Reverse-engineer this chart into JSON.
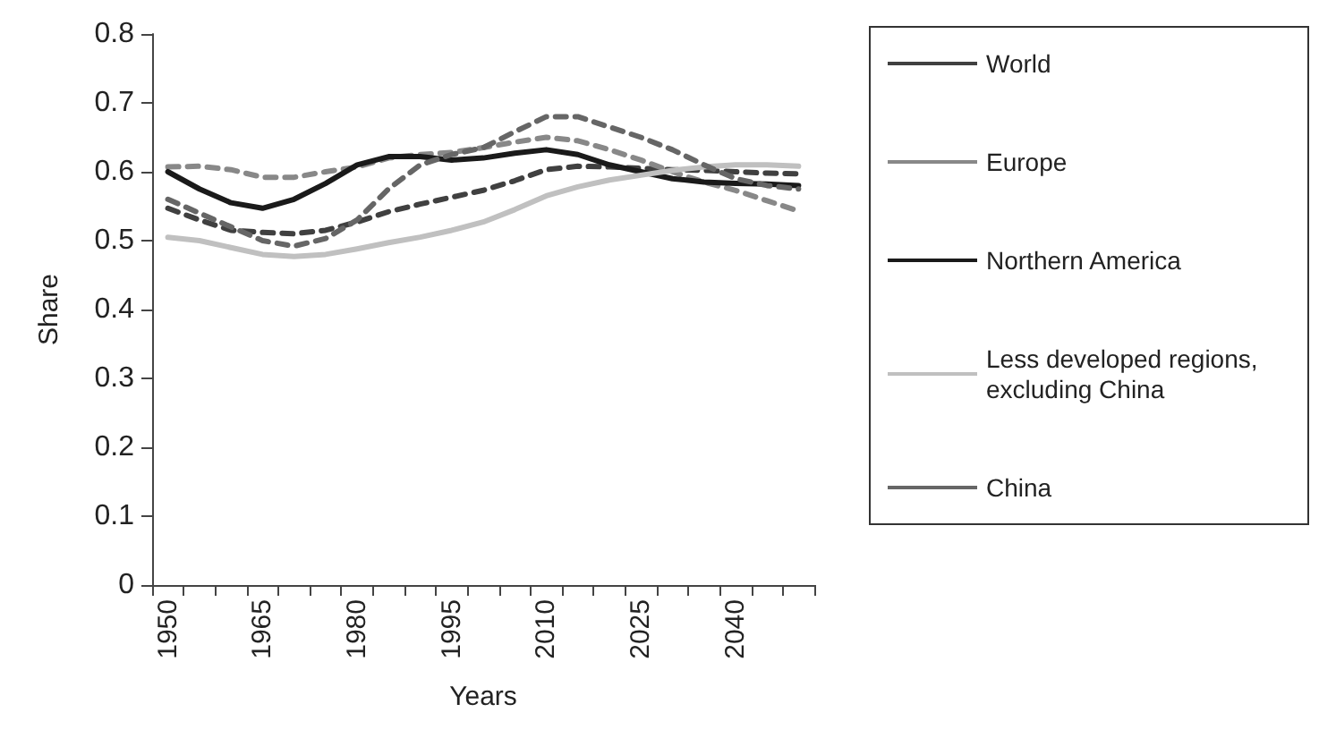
{
  "chart_data": {
    "type": "line",
    "xlabel": "Years",
    "ylabel": "Share",
    "categories": [
      "1950",
      null,
      null,
      "1965",
      null,
      null,
      "1980",
      null,
      null,
      "1995",
      null,
      null,
      "2010",
      null,
      null,
      "2025",
      null,
      null,
      "2040",
      null,
      null
    ],
    "series": [
      {
        "name": "World",
        "color": "#404040",
        "line_style": "dashed",
        "values": [
          0.547,
          0.53,
          0.515,
          0.512,
          0.51,
          0.515,
          0.527,
          0.542,
          0.553,
          0.563,
          0.573,
          0.587,
          0.603,
          0.608,
          0.607,
          0.605,
          0.603,
          0.602,
          0.6,
          0.598,
          0.597
        ]
      },
      {
        "name": "Europe",
        "color": "#888888",
        "line_style": "dashed",
        "values": [
          0.607,
          0.608,
          0.603,
          0.592,
          0.592,
          0.6,
          0.607,
          0.62,
          0.625,
          0.628,
          0.635,
          0.643,
          0.65,
          0.645,
          0.632,
          0.617,
          0.6,
          0.585,
          0.573,
          0.558,
          0.543
        ]
      },
      {
        "name": "Northern America",
        "color": "#1a1a1a",
        "line_style": "solid",
        "values": [
          0.6,
          0.575,
          0.555,
          0.547,
          0.56,
          0.583,
          0.61,
          0.622,
          0.622,
          0.617,
          0.62,
          0.627,
          0.632,
          0.625,
          0.61,
          0.6,
          0.59,
          0.585,
          0.583,
          0.582,
          0.58
        ]
      },
      {
        "name": "Less developed regions, excluding China",
        "color": "#c0c0c0",
        "line_style": "solid",
        "values": [
          0.505,
          0.5,
          0.49,
          0.48,
          0.477,
          0.48,
          0.488,
          0.497,
          0.505,
          0.515,
          0.527,
          0.545,
          0.565,
          0.578,
          0.588,
          0.595,
          0.602,
          0.607,
          0.61,
          0.61,
          0.608
        ]
      },
      {
        "name": "China",
        "color": "#666666",
        "line_style": "dashed",
        "values": [
          0.56,
          0.54,
          0.52,
          0.5,
          0.492,
          0.503,
          0.53,
          0.575,
          0.61,
          0.625,
          0.635,
          0.658,
          0.68,
          0.68,
          0.665,
          0.65,
          0.632,
          0.61,
          0.59,
          0.58,
          0.575
        ]
      }
    ],
    "ylim": [
      0,
      0.8
    ],
    "yticks": [
      0,
      0.1,
      0.2,
      0.3,
      0.4,
      0.5,
      0.6,
      0.7,
      0.8
    ],
    "grid": false,
    "legend": "right",
    "marker": "none"
  }
}
